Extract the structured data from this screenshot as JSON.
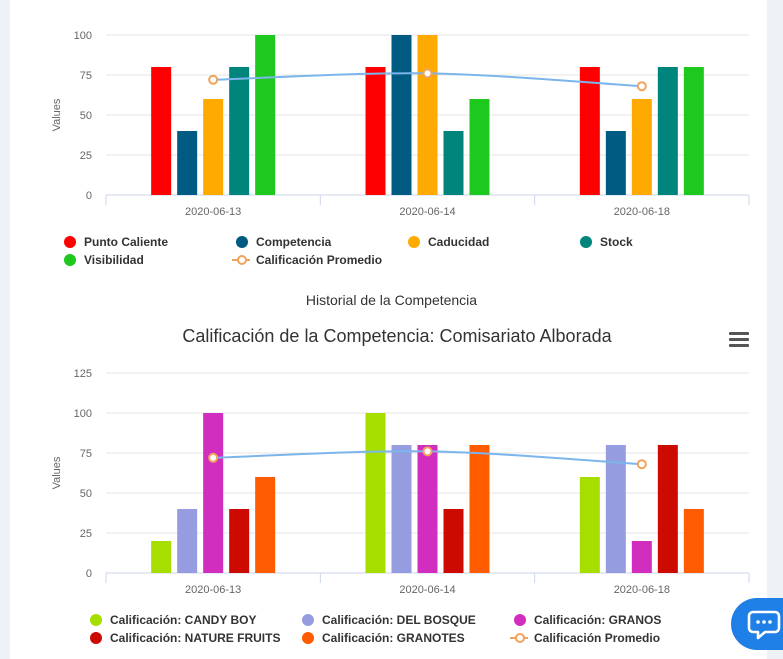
{
  "section_title": "Historial de la Competencia",
  "chart_data": [
    {
      "type": "bar",
      "title": "",
      "xlabel": "",
      "ylabel": "Values",
      "ylim": [
        0,
        100
      ],
      "yticks": [
        0,
        25,
        50,
        75,
        100
      ],
      "categories": [
        "2020-06-13",
        "2020-06-14",
        "2020-06-18"
      ],
      "series": [
        {
          "name": "Punto Caliente",
          "color": "#ff0000",
          "values": [
            80,
            80,
            80
          ]
        },
        {
          "name": "Competencia",
          "color": "#005b82",
          "values": [
            40,
            100,
            40
          ]
        },
        {
          "name": "Caducidad",
          "color": "#ffaa00",
          "values": [
            60,
            100,
            60
          ]
        },
        {
          "name": "Stock",
          "color": "#00857c",
          "values": [
            80,
            40,
            80
          ]
        },
        {
          "name": "Visibilidad",
          "color": "#1ec81e",
          "values": [
            100,
            60,
            80
          ]
        }
      ],
      "line_series": {
        "name": "Calificación Promedio",
        "color": "#7cb5ec",
        "marker_color": "#f0a35b",
        "values": [
          72,
          76,
          68
        ]
      },
      "legend_position": "bottom-left"
    },
    {
      "type": "bar",
      "title": "Calificación de la Competencia: Comisariato Alborada",
      "xlabel": "",
      "ylabel": "Values",
      "ylim": [
        0,
        125
      ],
      "yticks": [
        0,
        25,
        50,
        75,
        100,
        125
      ],
      "categories": [
        "2020-06-13",
        "2020-06-14",
        "2020-06-18"
      ],
      "series": [
        {
          "name": "Calificación: CANDY BOY",
          "color": "#a6de00",
          "values": [
            20,
            100,
            60
          ]
        },
        {
          "name": "Calificación: DEL BOSQUE",
          "color": "#969ce0",
          "values": [
            40,
            80,
            80
          ]
        },
        {
          "name": "Calificación: GRANOS",
          "color": "#d12ebf",
          "values": [
            100,
            80,
            20
          ]
        },
        {
          "name": "Calificación: NATURE FRUITS",
          "color": "#cc0a00",
          "values": [
            40,
            40,
            80
          ]
        },
        {
          "name": "Calificación: GRANOTES",
          "color": "#ff5b00",
          "values": [
            60,
            80,
            40
          ]
        }
      ],
      "line_series": {
        "name": "Calificación Promedio",
        "color": "#7cb5ec",
        "marker_color": "#f0a35b",
        "values": [
          72,
          76,
          68
        ]
      },
      "legend_position": "bottom-left"
    }
  ],
  "icons": {
    "menu": "hamburger-menu-icon",
    "chat": "chat-bubble-icon"
  }
}
